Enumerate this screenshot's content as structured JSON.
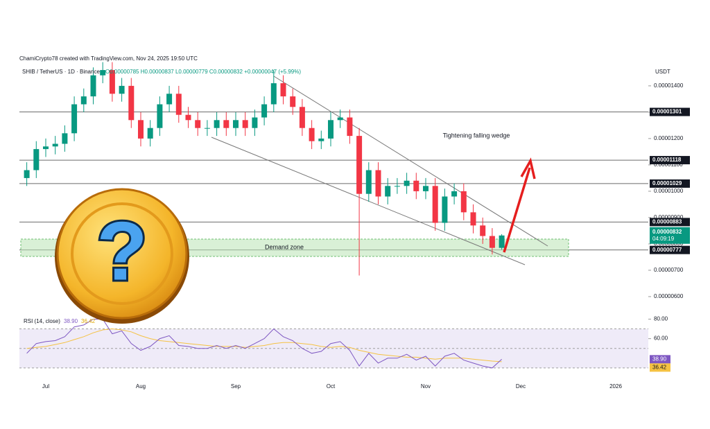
{
  "chart_data": {
    "type": "candlestick",
    "credit": "ChamiCrypto78 created with TradingView.com, Nov 24, 2025 19:50 UTC",
    "symbol": "SHIB / TetherUS · 1D · Binance",
    "ohlc_text": "O0.00000785 H0.00000837 L0.00000779 C0.00000832 +0.00000047 (+5.99%)",
    "currency": "USDT",
    "up_color": "#089981",
    "down_color": "#f23645",
    "categories": [
      null,
      null,
      "Jul",
      null,
      null,
      null,
      null,
      null,
      null,
      null,
      null,
      null,
      "Aug",
      null,
      null,
      null,
      null,
      null,
      null,
      null,
      null,
      null,
      "Sep",
      null,
      null,
      null,
      null,
      null,
      null,
      null,
      null,
      null,
      "Oct",
      null,
      null,
      null,
      null,
      null,
      null,
      null,
      null,
      null,
      "Nov",
      null,
      null,
      null,
      null,
      null,
      null,
      null,
      null,
      null,
      "Dec",
      null,
      null,
      null,
      null,
      null,
      null,
      null,
      null,
      null,
      "2026",
      null,
      null,
      null
    ],
    "open": [
      1.05e-05,
      1.08e-05,
      1.16e-05,
      1.17e-05,
      1.18e-05,
      1.22e-05,
      1.33e-05,
      1.36e-05,
      1.44e-05,
      1.46e-05,
      1.37e-05,
      1.4e-05,
      1.27e-05,
      1.2e-05,
      1.24e-05,
      1.33e-05,
      1.37e-05,
      1.29e-05,
      1.27e-05,
      1.24e-05,
      1.24e-05,
      1.27e-05,
      1.24e-05,
      1.27e-05,
      1.24e-05,
      1.28e-05,
      1.33e-05,
      1.41e-05,
      1.36e-05,
      1.32e-05,
      1.24e-05,
      1.19e-05,
      1.2e-05,
      1.27e-05,
      1.28e-05,
      1.21e-05,
      9.9e-06,
      1.08e-05,
      9.8e-06,
      1.02e-05,
      1.02e-05,
      1.04e-05,
      1e-05,
      1.02e-05,
      8.8e-06,
      9.8e-06,
      1e-05,
      9.2e-06,
      8.7e-06,
      8.3e-06,
      7.85e-06,
      null,
      null,
      null,
      null,
      null,
      null,
      null,
      null,
      null,
      null,
      null,
      null,
      null,
      null,
      null
    ],
    "high": [
      1.11e-05,
      1.19e-05,
      1.2e-05,
      1.21e-05,
      1.25e-05,
      1.36e-05,
      1.39e-05,
      1.47e-05,
      1.49e-05,
      1.49e-05,
      1.43e-05,
      1.43e-05,
      1.3e-05,
      1.27e-05,
      1.36e-05,
      1.4e-05,
      1.4e-05,
      1.32e-05,
      1.3e-05,
      1.27e-05,
      1.3e-05,
      1.3e-05,
      1.3e-05,
      1.3e-05,
      1.31e-05,
      1.36e-05,
      1.46e-05,
      1.44e-05,
      1.39e-05,
      1.35e-05,
      1.27e-05,
      1.23e-05,
      1.3e-05,
      1.31e-05,
      1.31e-05,
      1.24e-05,
      1.11e-05,
      1.11e-05,
      1.05e-05,
      1.05e-05,
      1.07e-05,
      1.07e-05,
      1.05e-05,
      1.05e-05,
      1.01e-05,
      1.03e-05,
      1.03e-05,
      9.5e-06,
      9e-06,
      8.6e-06,
      8.37e-06,
      null,
      null,
      null,
      null,
      null,
      null,
      null,
      null,
      null,
      null,
      null,
      null,
      null,
      null,
      null
    ],
    "low": [
      1.02e-05,
      1.05e-05,
      1.13e-05,
      1.14e-05,
      1.15e-05,
      1.19e-05,
      1.3e-05,
      1.33e-05,
      1.41e-05,
      1.34e-05,
      1.34e-05,
      1.24e-05,
      1.17e-05,
      1.17e-05,
      1.21e-05,
      1.3e-05,
      1.26e-05,
      1.24e-05,
      1.21e-05,
      1.21e-05,
      1.21e-05,
      1.21e-05,
      1.21e-05,
      1.21e-05,
      1.21e-05,
      1.25e-05,
      1.3e-05,
      1.33e-05,
      1.29e-05,
      1.21e-05,
      1.16e-05,
      1.16e-05,
      1.17e-05,
      1.24e-05,
      1.18e-05,
      6.8e-06,
      9.6e-06,
      9.5e-06,
      9.5e-06,
      9.9e-06,
      9.9e-06,
      9.7e-06,
      9.7e-06,
      8.5e-06,
      8.5e-06,
      9.5e-06,
      8.9e-06,
      8.4e-06,
      8e-06,
      7.6e-06,
      7.79e-06,
      null,
      null,
      null,
      null,
      null,
      null,
      null,
      null,
      null,
      null,
      null,
      null,
      null,
      null,
      null
    ],
    "close": [
      1.08e-05,
      1.16e-05,
      1.17e-05,
      1.18e-05,
      1.22e-05,
      1.33e-05,
      1.36e-05,
      1.44e-05,
      1.46e-05,
      1.37e-05,
      1.4e-05,
      1.27e-05,
      1.2e-05,
      1.24e-05,
      1.33e-05,
      1.37e-05,
      1.29e-05,
      1.27e-05,
      1.24e-05,
      1.24e-05,
      1.27e-05,
      1.24e-05,
      1.27e-05,
      1.24e-05,
      1.28e-05,
      1.33e-05,
      1.41e-05,
      1.36e-05,
      1.32e-05,
      1.24e-05,
      1.19e-05,
      1.2e-05,
      1.27e-05,
      1.28e-05,
      1.21e-05,
      9.9e-06,
      1.08e-05,
      9.8e-06,
      1.02e-05,
      1.02e-05,
      1.04e-05,
      1e-05,
      1.02e-05,
      8.8e-06,
      9.8e-06,
      1e-05,
      9.2e-06,
      8.7e-06,
      8.3e-06,
      7.85e-06,
      8.32e-06,
      null,
      null,
      null,
      null,
      null,
      null,
      null,
      null,
      null,
      null,
      null,
      null,
      null,
      null,
      null
    ],
    "ylim": [
      5.42e-06,
      1.476e-05
    ],
    "yticks": [
      {
        "value": 6e-06,
        "label": "0.00000600"
      },
      {
        "value": 7e-06,
        "label": "0.00000700"
      },
      {
        "value": 8e-06,
        "label": "0.00000800"
      },
      {
        "value": 9e-06,
        "label": "0.00000900"
      },
      {
        "value": 1e-05,
        "label": "0.00001000"
      },
      {
        "value": 1.1e-05,
        "label": "0.00001100"
      },
      {
        "value": 1.2e-05,
        "label": "0.00001200"
      },
      {
        "value": 1.3e-05,
        "label": "0.00001300"
      },
      {
        "value": 1.4e-05,
        "label": "0.00001400"
      }
    ],
    "levels": [
      {
        "value": 1.301e-05,
        "label": "0.00001301"
      },
      {
        "value": 1.118e-05,
        "label": "0.00001118"
      },
      {
        "value": 1.029e-05,
        "label": "0.00001029"
      },
      {
        "value": 8.83e-06,
        "label": "0.00000883"
      },
      {
        "value": 7.77e-06,
        "label": "0.00000777"
      }
    ],
    "last_price": {
      "value": 8.32e-06,
      "label": "0.00000832",
      "countdown": "04:09:19"
    },
    "annotations": {
      "wedge": "Tightening falling wedge",
      "demand": "Demand zone"
    },
    "overlay_icon_text": "?",
    "rsi": {
      "title": "RSI (14, close)",
      "color": "#7e57c2",
      "ma_color": "#f5c242",
      "last_labels": {
        "rsi": "38.90",
        "ma": "36.42"
      },
      "values": [
        45,
        55,
        57,
        58,
        62,
        72,
        74,
        80,
        80,
        65,
        68,
        55,
        48,
        52,
        60,
        63,
        53,
        52,
        50,
        50,
        53,
        50,
        53,
        50,
        55,
        60,
        70,
        62,
        58,
        50,
        45,
        47,
        55,
        57,
        48,
        32,
        45,
        35,
        40,
        40,
        44,
        38,
        42,
        32,
        42,
        45,
        38,
        35,
        32,
        30,
        38.9,
        null,
        null,
        null,
        null,
        null,
        null,
        null,
        null,
        null,
        null,
        null,
        null,
        null,
        null,
        null
      ],
      "ma": [
        50,
        51,
        52,
        54,
        56,
        59,
        62,
        66,
        69,
        70,
        69,
        67,
        63,
        60,
        58,
        57,
        56,
        55,
        54,
        53,
        52,
        52,
        52,
        51,
        52,
        53,
        55,
        56,
        56,
        55,
        54,
        52,
        51,
        52,
        51,
        48,
        46,
        44,
        43,
        42,
        41,
        41,
        40,
        39,
        40,
        40,
        40,
        39,
        38,
        37,
        36.42,
        null,
        null,
        null,
        null,
        null,
        null,
        null,
        null,
        null,
        null,
        null,
        null,
        null,
        null,
        null
      ],
      "ylim": [
        20,
        86
      ],
      "yticks": [
        {
          "value": 60,
          "label": "60.00"
        },
        {
          "value": 80,
          "label": "80.00"
        }
      ]
    }
  }
}
